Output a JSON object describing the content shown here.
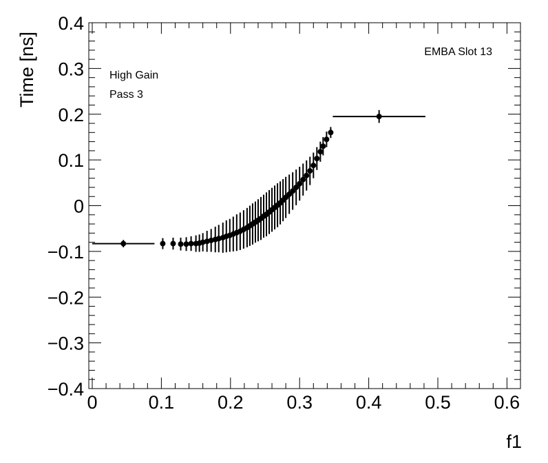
{
  "chart_data": {
    "type": "scatter",
    "title": "",
    "xlabel": "f1",
    "ylabel": "Time [ns]",
    "xlim": [
      0,
      0.62
    ],
    "ylim": [
      -0.4,
      0.4
    ],
    "grid": false,
    "annotations": [
      "EMBA Slot 13",
      "High Gain",
      "Pass 3"
    ],
    "x_ticks": [
      "0",
      "0.1",
      "0.2",
      "0.3",
      "0.4",
      "0.5",
      "0.6"
    ],
    "y_ticks": [
      "−0.4",
      "−0.3",
      "−0.2",
      "−0.1",
      "0",
      "0.1",
      "0.2",
      "0.3",
      "0.4"
    ],
    "series": [
      {
        "marker": "circle",
        "color": "#000000",
        "points": [
          {
            "x": 0.045,
            "y": -0.083,
            "xerr": 0.045,
            "yerr": 0.008
          },
          {
            "x": 0.102,
            "y": -0.083,
            "xerr": 0.002,
            "yerr": 0.012
          },
          {
            "x": 0.117,
            "y": -0.083,
            "xerr": 0.002,
            "yerr": 0.013
          },
          {
            "x": 0.128,
            "y": -0.084,
            "xerr": 0.002,
            "yerr": 0.014
          },
          {
            "x": 0.136,
            "y": -0.084,
            "xerr": 0.002,
            "yerr": 0.015
          },
          {
            "x": 0.143,
            "y": -0.083,
            "xerr": 0.002,
            "yerr": 0.016
          },
          {
            "x": 0.15,
            "y": -0.083,
            "xerr": 0.002,
            "yerr": 0.018
          },
          {
            "x": 0.155,
            "y": -0.082,
            "xerr": 0.002,
            "yerr": 0.019
          },
          {
            "x": 0.16,
            "y": -0.08,
            "xerr": 0.002,
            "yerr": 0.02
          },
          {
            "x": 0.166,
            "y": -0.078,
            "xerr": 0.002,
            "yerr": 0.023
          },
          {
            "x": 0.172,
            "y": -0.076,
            "xerr": 0.002,
            "yerr": 0.025
          },
          {
            "x": 0.178,
            "y": -0.074,
            "xerr": 0.002,
            "yerr": 0.028
          },
          {
            "x": 0.183,
            "y": -0.072,
            "xerr": 0.002,
            "yerr": 0.03
          },
          {
            "x": 0.189,
            "y": -0.07,
            "xerr": 0.002,
            "yerr": 0.033
          },
          {
            "x": 0.194,
            "y": -0.067,
            "xerr": 0.002,
            "yerr": 0.035
          },
          {
            "x": 0.199,
            "y": -0.065,
            "xerr": 0.002,
            "yerr": 0.036
          },
          {
            "x": 0.204,
            "y": -0.062,
            "xerr": 0.002,
            "yerr": 0.038
          },
          {
            "x": 0.209,
            "y": -0.059,
            "xerr": 0.002,
            "yerr": 0.04
          },
          {
            "x": 0.214,
            "y": -0.056,
            "xerr": 0.002,
            "yerr": 0.041
          },
          {
            "x": 0.219,
            "y": -0.052,
            "xerr": 0.002,
            "yerr": 0.042
          },
          {
            "x": 0.224,
            "y": -0.048,
            "xerr": 0.002,
            "yerr": 0.043
          },
          {
            "x": 0.228,
            "y": -0.044,
            "xerr": 0.002,
            "yerr": 0.044
          },
          {
            "x": 0.232,
            "y": -0.04,
            "xerr": 0.001,
            "yerr": 0.045
          },
          {
            "x": 0.236,
            "y": -0.036,
            "xerr": 0.001,
            "yerr": 0.045
          },
          {
            "x": 0.24,
            "y": -0.032,
            "xerr": 0.001,
            "yerr": 0.046
          },
          {
            "x": 0.244,
            "y": -0.028,
            "xerr": 0.001,
            "yerr": 0.047
          },
          {
            "x": 0.248,
            "y": -0.023,
            "xerr": 0.001,
            "yerr": 0.047
          },
          {
            "x": 0.252,
            "y": -0.019,
            "xerr": 0.001,
            "yerr": 0.048
          },
          {
            "x": 0.256,
            "y": -0.014,
            "xerr": 0.001,
            "yerr": 0.048
          },
          {
            "x": 0.26,
            "y": -0.009,
            "xerr": 0.001,
            "yerr": 0.048
          },
          {
            "x": 0.264,
            "y": -0.004,
            "xerr": 0.001,
            "yerr": 0.048
          },
          {
            "x": 0.268,
            "y": 0.001,
            "xerr": 0.001,
            "yerr": 0.048
          },
          {
            "x": 0.272,
            "y": 0.006,
            "xerr": 0.001,
            "yerr": 0.047
          },
          {
            "x": 0.276,
            "y": 0.012,
            "xerr": 0.001,
            "yerr": 0.046
          },
          {
            "x": 0.28,
            "y": 0.018,
            "xerr": 0.002,
            "yerr": 0.045
          },
          {
            "x": 0.285,
            "y": 0.025,
            "xerr": 0.002,
            "yerr": 0.043
          },
          {
            "x": 0.29,
            "y": 0.032,
            "xerr": 0.002,
            "yerr": 0.041
          },
          {
            "x": 0.295,
            "y": 0.04,
            "xerr": 0.002,
            "yerr": 0.039
          },
          {
            "x": 0.3,
            "y": 0.048,
            "xerr": 0.002,
            "yerr": 0.037
          },
          {
            "x": 0.305,
            "y": 0.057,
            "xerr": 0.002,
            "yerr": 0.035
          },
          {
            "x": 0.31,
            "y": 0.066,
            "xerr": 0.002,
            "yerr": 0.033
          },
          {
            "x": 0.315,
            "y": 0.076,
            "xerr": 0.002,
            "yerr": 0.031
          },
          {
            "x": 0.32,
            "y": 0.088,
            "xerr": 0.002,
            "yerr": 0.028
          },
          {
            "x": 0.325,
            "y": 0.103,
            "xerr": 0.002,
            "yerr": 0.025
          },
          {
            "x": 0.33,
            "y": 0.118,
            "xerr": 0.002,
            "yerr": 0.022
          },
          {
            "x": 0.334,
            "y": 0.13,
            "xerr": 0.002,
            "yerr": 0.02
          },
          {
            "x": 0.339,
            "y": 0.145,
            "xerr": 0.002,
            "yerr": 0.017
          },
          {
            "x": 0.345,
            "y": 0.16,
            "xerr": 0.003,
            "yerr": 0.012
          },
          {
            "x": 0.415,
            "y": 0.195,
            "xerr": 0.067,
            "yerr": 0.014
          }
        ]
      }
    ]
  }
}
